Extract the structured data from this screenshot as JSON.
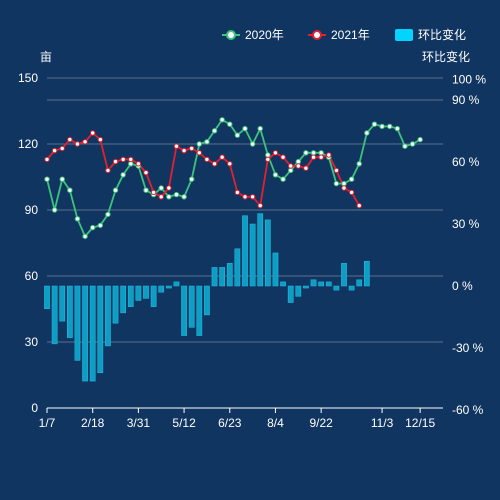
{
  "chart_data": {
    "type": "line",
    "left_axis_unit": "亩",
    "right_axis_unit": "环比变化",
    "legend": [
      {
        "label": "2020年",
        "marker": "line-circle",
        "color": "#3cc47c"
      },
      {
        "label": "2021年",
        "marker": "line-circle",
        "color": "#e5202e"
      },
      {
        "label": "环比变化",
        "marker": "rect",
        "color": "#00d4ff"
      }
    ],
    "colors": {
      "background": "#113561",
      "line2020": "#3cc47c",
      "line2021": "#e5202e",
      "bar": "#0f9dc4"
    },
    "x_labels": [
      "1/7",
      "2/18",
      "3/31",
      "5/12",
      "6/23",
      "8/4",
      "9/22",
      "11/3",
      "12/15"
    ],
    "left_axis": {
      "ticks": [
        "150",
        "120",
        "90",
        "60",
        "30",
        "0"
      ],
      "ylim": [
        0,
        150
      ]
    },
    "right_axis": {
      "ticks": [
        "100 %",
        "90 %",
        "60 %",
        "30 %",
        "0 %",
        "-30 %",
        "-60 %"
      ],
      "ylim": [
        -60,
        100
      ]
    },
    "series": [
      {
        "name": "2020年",
        "values": [
          104,
          90,
          104,
          99,
          86,
          78,
          82,
          83,
          88,
          99,
          106,
          111,
          110,
          99,
          97,
          100,
          96,
          97,
          96,
          104,
          120,
          121,
          126,
          131,
          129,
          124,
          127,
          120,
          127,
          115,
          106,
          104,
          108,
          112,
          116,
          116,
          116,
          114,
          102,
          102,
          104,
          111,
          125,
          129,
          128,
          128,
          127,
          119,
          120,
          122
        ]
      },
      {
        "name": "2021年",
        "values": [
          113,
          117,
          118,
          122,
          120,
          121,
          125,
          122,
          108,
          112,
          113,
          113,
          111,
          107,
          98,
          96,
          100,
          119,
          117,
          118,
          116,
          113,
          111,
          114,
          111,
          98,
          96,
          96,
          92,
          113,
          116,
          114,
          110,
          110,
          109,
          114,
          114,
          115,
          108,
          100,
          98,
          92
        ]
      },
      {
        "name": "环比变化",
        "values": [
          -11,
          -28,
          -17,
          -25,
          -36,
          -46,
          -46,
          -42,
          -29,
          -18,
          -13,
          -10,
          -7,
          -6,
          -10,
          -3,
          -1,
          2,
          -24,
          -20,
          -24,
          -14,
          9,
          9,
          11,
          18,
          34,
          30,
          35,
          32,
          16,
          2,
          -8,
          -5,
          -1,
          3,
          2,
          2,
          -2,
          11,
          -2,
          3,
          12
        ]
      }
    ]
  }
}
